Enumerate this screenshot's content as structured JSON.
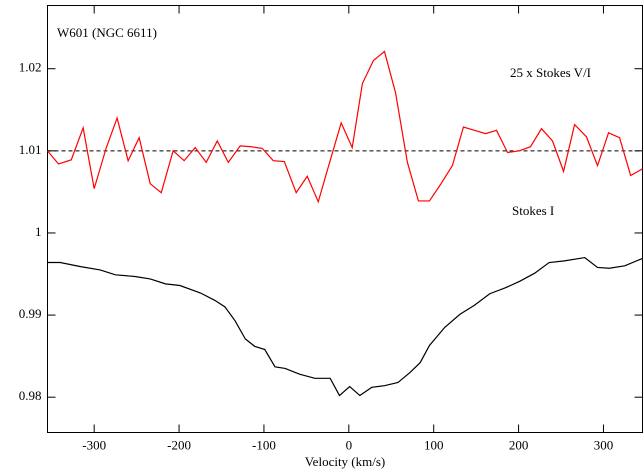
{
  "chart_data": {
    "type": "line",
    "title": "W601 (NGC 6611)",
    "x_label": "Velocity (km/s)",
    "xlim": [
      -355,
      346
    ],
    "ylim": [
      0.9757,
      1.0277
    ],
    "xticks": [
      -300,
      -200,
      -100,
      0,
      100,
      200,
      300
    ],
    "yticks": [
      0.98,
      0.99,
      1,
      1.01,
      1.02
    ],
    "reference_line": 1.01,
    "series": [
      {
        "name": "25 x Stokes V/I",
        "color": "#ff0000",
        "x": [
          -355,
          -342,
          -327,
          -313,
          -300,
          -286,
          -273,
          -260,
          -247,
          -234,
          -221,
          -207,
          -194,
          -181,
          -168,
          -155,
          -142,
          -128,
          -115,
          -102,
          -89,
          -76,
          -62,
          -49,
          -36,
          -24,
          -9,
          4,
          16,
          29,
          42,
          55,
          69,
          82,
          95,
          108,
          122,
          135,
          148,
          161,
          174,
          187,
          201,
          214,
          227,
          240,
          253,
          266,
          280,
          293,
          306,
          319,
          332,
          346
        ],
        "values": [
          1.01,
          1.0084,
          1.0089,
          1.0128,
          1.0054,
          1.0103,
          1.014,
          1.0088,
          1.0116,
          1.006,
          1.0049,
          1.01,
          1.0088,
          1.0104,
          1.0086,
          1.0112,
          1.0086,
          1.0106,
          1.0105,
          1.0103,
          1.0088,
          1.0087,
          1.0049,
          1.0069,
          1.0038,
          1.0081,
          1.0134,
          1.0104,
          1.0182,
          1.021,
          1.0221,
          1.0171,
          1.0086,
          1.0039,
          1.0039,
          1.0059,
          1.0082,
          1.0129,
          1.0125,
          1.0121,
          1.0125,
          1.0098,
          1.01,
          1.0105,
          1.0127,
          1.0112,
          1.0075,
          1.0132,
          1.0117,
          1.0082,
          1.0122,
          1.0116,
          1.007,
          1.0078
        ]
      },
      {
        "name": "Stokes I",
        "color": "#000000",
        "x": [
          -355,
          -340,
          -316,
          -293,
          -275,
          -252,
          -234,
          -216,
          -199,
          -175,
          -158,
          -146,
          -134,
          -122,
          -111,
          -99,
          -87,
          -75,
          -58,
          -40,
          -22,
          -11,
          1,
          13,
          27,
          42,
          58,
          72,
          84,
          95,
          113,
          131,
          148,
          166,
          184,
          201,
          219,
          236,
          254,
          278,
          293,
          307,
          325,
          346
        ],
        "values": [
          0.9964,
          0.9964,
          0.9959,
          0.9955,
          0.9949,
          0.9947,
          0.9944,
          0.9938,
          0.9936,
          0.9927,
          0.9918,
          0.991,
          0.9893,
          0.9871,
          0.9862,
          0.9858,
          0.9837,
          0.9835,
          0.9828,
          0.9823,
          0.9823,
          0.9802,
          0.9813,
          0.9802,
          0.9812,
          0.9814,
          0.9818,
          0.983,
          0.9842,
          0.9863,
          0.9885,
          0.9901,
          0.9912,
          0.9926,
          0.9933,
          0.9941,
          0.9951,
          0.9964,
          0.9966,
          0.997,
          0.9958,
          0.9957,
          0.996,
          0.9969
        ]
      }
    ]
  }
}
